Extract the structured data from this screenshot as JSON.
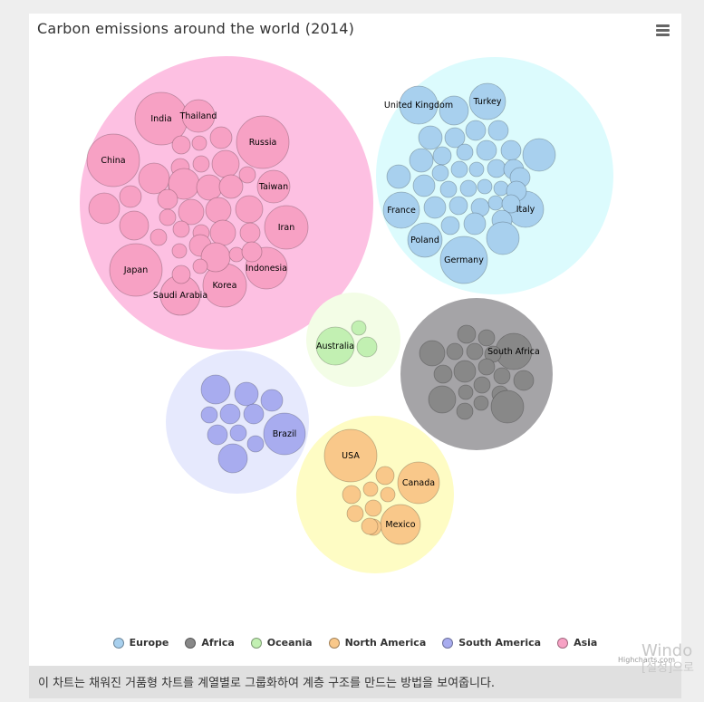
{
  "chart_data": {
    "type": "packed-bubble",
    "title": "Carbon emissions around the world (2014)",
    "series": [
      {
        "name": "Asia",
        "color": "#f7a1c4",
        "parent_circle": [
          218,
          209,
          162
        ],
        "points": [
          [
            146,
            116,
            29,
            "India"
          ],
          [
            187,
            113,
            18,
            "Thailand"
          ],
          [
            258,
            142,
            29,
            "Russia"
          ],
          [
            93,
            162,
            29,
            "China"
          ],
          [
            270,
            191,
            18,
            "Taiwan"
          ],
          [
            284,
            236,
            24,
            "Iran"
          ],
          [
            118,
            283,
            29,
            "Japan"
          ],
          [
            262,
            281,
            23,
            "Indonesia"
          ],
          [
            216,
            300,
            24,
            "Korea"
          ],
          [
            167,
            311,
            22,
            "Saudi Arabia"
          ],
          [
            168,
            145,
            10,
            ""
          ],
          [
            212,
            137,
            12,
            ""
          ],
          [
            167,
            170,
            10,
            ""
          ],
          [
            188,
            143,
            8,
            ""
          ],
          [
            138,
            182,
            17,
            ""
          ],
          [
            162,
            191,
            8,
            ""
          ],
          [
            217,
            166,
            15,
            ""
          ],
          [
            190,
            166,
            9,
            ""
          ],
          [
            241,
            178,
            9,
            ""
          ],
          [
            112,
            202,
            12,
            ""
          ],
          [
            83,
            215,
            17,
            ""
          ],
          [
            171,
            188,
            17,
            ""
          ],
          [
            199,
            192,
            14,
            ""
          ],
          [
            223,
            191,
            13,
            ""
          ],
          [
            153,
            205,
            11,
            ""
          ],
          [
            179,
            219,
            14,
            ""
          ],
          [
            209,
            217,
            14,
            ""
          ],
          [
            243,
            216,
            15,
            ""
          ],
          [
            116,
            234,
            16,
            ""
          ],
          [
            153,
            225,
            9,
            ""
          ],
          [
            168,
            238,
            9,
            ""
          ],
          [
            190,
            242,
            9,
            ""
          ],
          [
            214,
            242,
            14,
            ""
          ],
          [
            244,
            242,
            11,
            ""
          ],
          [
            143,
            247,
            9,
            ""
          ],
          [
            166,
            262,
            8,
            ""
          ],
          [
            189,
            256,
            12,
            ""
          ],
          [
            206,
            269,
            16,
            ""
          ],
          [
            229,
            266,
            8,
            ""
          ],
          [
            246,
            263,
            11,
            ""
          ],
          [
            168,
            288,
            10,
            ""
          ],
          [
            189,
            279,
            8,
            ""
          ]
        ]
      },
      {
        "name": "Europe",
        "color": "#a8d0ee",
        "parent_circle": [
          514,
          179,
          131
        ],
        "points": [
          [
            430,
            101,
            21,
            "United Kingdom"
          ],
          [
            506,
            97,
            20,
            "Turkey"
          ],
          [
            411,
            217,
            20,
            "France"
          ],
          [
            548,
            216,
            20,
            "Italy"
          ],
          [
            437,
            250,
            19,
            "Poland"
          ],
          [
            480,
            272,
            26,
            "Germany"
          ],
          [
            469,
            107,
            16,
            ""
          ],
          [
            443,
            137,
            13,
            ""
          ],
          [
            470,
            137,
            11,
            ""
          ],
          [
            493,
            129,
            11,
            ""
          ],
          [
            518,
            129,
            11,
            ""
          ],
          [
            563,
            156,
            18,
            ""
          ],
          [
            408,
            180,
            13,
            ""
          ],
          [
            433,
            162,
            13,
            ""
          ],
          [
            456,
            157,
            10,
            ""
          ],
          [
            481,
            153,
            9,
            ""
          ],
          [
            505,
            151,
            11,
            ""
          ],
          [
            532,
            151,
            11,
            ""
          ],
          [
            454,
            176,
            9,
            ""
          ],
          [
            475,
            172,
            9,
            ""
          ],
          [
            494,
            172,
            8,
            ""
          ],
          [
            516,
            171,
            10,
            ""
          ],
          [
            535,
            172,
            11,
            ""
          ],
          [
            542,
            181,
            11,
            ""
          ],
          [
            436,
            190,
            12,
            ""
          ],
          [
            463,
            194,
            9,
            ""
          ],
          [
            485,
            193,
            9,
            ""
          ],
          [
            503,
            191,
            8,
            ""
          ],
          [
            521,
            193,
            8,
            ""
          ],
          [
            538,
            196,
            11,
            ""
          ],
          [
            448,
            214,
            12,
            ""
          ],
          [
            474,
            212,
            10,
            ""
          ],
          [
            498,
            214,
            10,
            ""
          ],
          [
            515,
            209,
            8,
            ""
          ],
          [
            532,
            210,
            10,
            ""
          ],
          [
            465,
            234,
            10,
            ""
          ],
          [
            492,
            232,
            12,
            ""
          ],
          [
            522,
            228,
            11,
            ""
          ],
          [
            523,
            248,
            18,
            ""
          ]
        ]
      },
      {
        "name": "Oceania",
        "color": "#c2f0b2",
        "parent_circle": [
          358,
          360,
          52
        ],
        "points": [
          [
            338,
            367,
            21,
            "Australia"
          ],
          [
            364,
            347,
            8,
            ""
          ],
          [
            373,
            368,
            11,
            ""
          ]
        ]
      },
      {
        "name": "Africa",
        "color": "#888888",
        "parent_circle": [
          494,
          398,
          84
        ],
        "points": [
          [
            535,
            373,
            20,
            "South Africa"
          ],
          [
            445,
            375,
            14,
            ""
          ],
          [
            483,
            354,
            10,
            ""
          ],
          [
            505,
            358,
            9,
            ""
          ],
          [
            470,
            373,
            9,
            ""
          ],
          [
            492,
            373,
            9,
            ""
          ],
          [
            512,
            376,
            9,
            ""
          ],
          [
            457,
            398,
            10,
            ""
          ],
          [
            481,
            395,
            12,
            ""
          ],
          [
            505,
            390,
            9,
            ""
          ],
          [
            522,
            400,
            9,
            ""
          ],
          [
            546,
            405,
            11,
            ""
          ],
          [
            456,
            426,
            15,
            ""
          ],
          [
            482,
            418,
            8,
            ""
          ],
          [
            500,
            410,
            9,
            ""
          ],
          [
            520,
            420,
            9,
            ""
          ],
          [
            499,
            430,
            8,
            ""
          ],
          [
            481,
            439,
            9,
            ""
          ],
          [
            528,
            434,
            18,
            ""
          ]
        ]
      },
      {
        "name": "South America",
        "color": "#a8acef",
        "parent_circle": [
          230,
          451,
          79
        ],
        "points": [
          [
            282,
            464,
            23,
            "Brazil"
          ],
          [
            206,
            415,
            16,
            ""
          ],
          [
            240,
            420,
            13,
            ""
          ],
          [
            268,
            427,
            12,
            ""
          ],
          [
            199,
            443,
            9,
            ""
          ],
          [
            222,
            442,
            11,
            ""
          ],
          [
            248,
            442,
            11,
            ""
          ],
          [
            208,
            465,
            11,
            ""
          ],
          [
            231,
            463,
            9,
            ""
          ],
          [
            250,
            475,
            9,
            ""
          ],
          [
            225,
            491,
            16,
            ""
          ]
        ]
      },
      {
        "name": "North America",
        "color": "#f9c88a",
        "parent_circle": [
          382,
          531,
          87
        ],
        "points": [
          [
            355,
            488,
            29,
            "USA"
          ],
          [
            430,
            518,
            23,
            "Canada"
          ],
          [
            410,
            564,
            22,
            "Mexico"
          ],
          [
            393,
            510,
            10,
            ""
          ],
          [
            356,
            531,
            10,
            ""
          ],
          [
            377,
            525,
            8,
            ""
          ],
          [
            396,
            531,
            8,
            ""
          ],
          [
            360,
            552,
            9,
            ""
          ],
          [
            380,
            546,
            9,
            ""
          ],
          [
            380,
            567,
            9,
            ""
          ],
          [
            376,
            566,
            9,
            ""
          ]
        ]
      }
    ],
    "legend": {
      "placement": "bottom-center",
      "items": [
        "Europe",
        "Africa",
        "Oceania",
        "North America",
        "South America",
        "Asia"
      ]
    }
  },
  "colors": {
    "Europe": "#a8d0ee",
    "Africa": "#888888",
    "Oceania": "#c2f0b2",
    "North America": "#f9c88a",
    "South America": "#a8acef",
    "Asia": "#f7a1c4",
    "parent_Europe": "#dcfbfd",
    "parent_Africa": "#a5a4a7",
    "parent_Oceania": "#f3fde6",
    "parent_North America": "#fefcc4",
    "parent_South America": "#e6e9fd",
    "parent_Asia": "#fdc0e2"
  },
  "menu_icon": "hamburger-menu-icon",
  "credits": "Highcharts.com",
  "description": "이 차트는 채워진 거품형 차트를 계열별로 그룹화하여 계층 구조를 만드는 방법을 보여줍니다.",
  "watermark": {
    "line1": "Windo",
    "line2": "[설정]으로"
  }
}
